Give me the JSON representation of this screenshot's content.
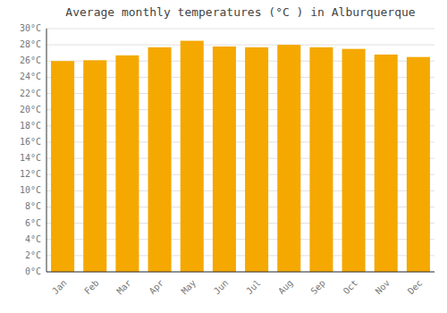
{
  "chart_data": {
    "type": "bar",
    "title": "Average monthly temperatures (°C ) in Alburquerque",
    "categories": [
      "Jan",
      "Feb",
      "Mar",
      "Apr",
      "May",
      "Jun",
      "Jul",
      "Aug",
      "Sep",
      "Oct",
      "Nov",
      "Dec"
    ],
    "values": [
      26.0,
      26.1,
      26.7,
      27.7,
      28.5,
      27.8,
      27.7,
      28.0,
      27.7,
      27.5,
      26.8,
      26.5
    ],
    "color": "#F5A800",
    "ylim": [
      0,
      30
    ],
    "yticks": [
      {
        "value": 0,
        "label": "0°C"
      },
      {
        "value": 2,
        "label": "2°C"
      },
      {
        "value": 4,
        "label": "4°C"
      },
      {
        "value": 6,
        "label": "6°C"
      },
      {
        "value": 8,
        "label": "8°C"
      },
      {
        "value": 10,
        "label": "10°C"
      },
      {
        "value": 12,
        "label": "12°C"
      },
      {
        "value": 14,
        "label": "14°C"
      },
      {
        "value": 16,
        "label": "16°C"
      },
      {
        "value": 18,
        "label": "18°C"
      },
      {
        "value": 20,
        "label": "20°C"
      },
      {
        "value": 22,
        "label": "22°C"
      },
      {
        "value": 24,
        "label": "24°C"
      },
      {
        "value": 26,
        "label": "26°C"
      },
      {
        "value": 28,
        "label": "28°C"
      },
      {
        "value": 30,
        "label": "30°C"
      }
    ],
    "grid": true
  }
}
